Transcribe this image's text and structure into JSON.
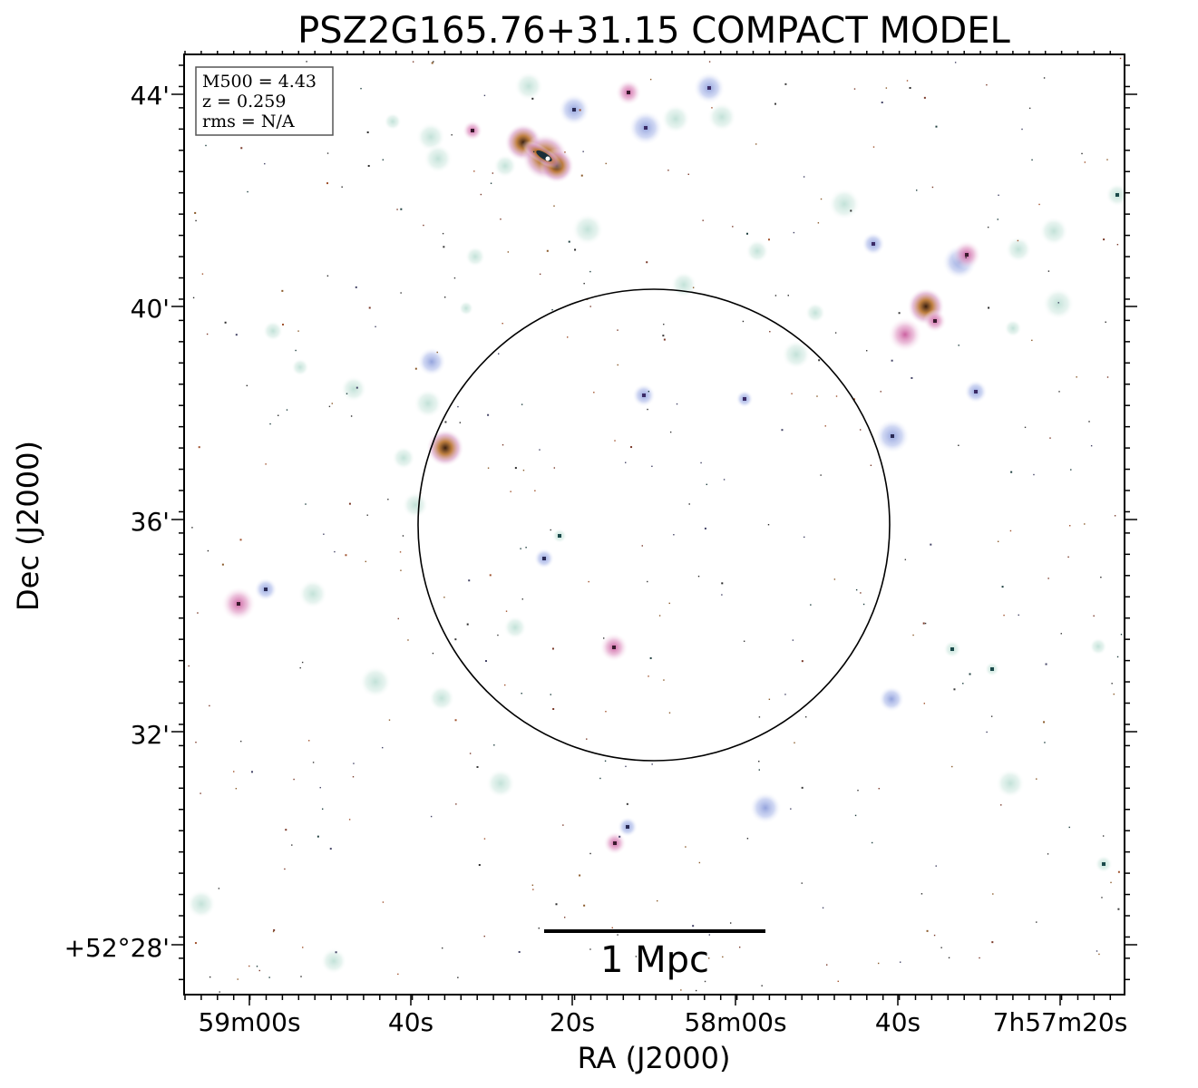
{
  "title": "PSZ2G165.76+31.15 COMPACT MODEL",
  "xlabel": "RA (J2000)",
  "ylabel": "Dec (J2000)",
  "x_ticks": [
    "59m00s",
    "40s",
    "20s",
    "58m00s",
    "40s",
    "7h57m20s"
  ],
  "y_ticks": [
    "44'",
    "40'",
    "36'",
    "32'",
    "+52°28'"
  ],
  "info_box": {
    "m500": "M500 = 4.43",
    "z": "z = 0.259",
    "rms": "rms = N/A"
  },
  "scalebar_label": "1 Mpc",
  "colors": {
    "halo_green": "#cfe9df",
    "halo_blue": "#b8c6ec",
    "halo_pink": "#e9b7d4",
    "core_dark": "#3b1a2e",
    "core_purple": "#5b3a82",
    "core_orange": "#c0702c"
  }
}
